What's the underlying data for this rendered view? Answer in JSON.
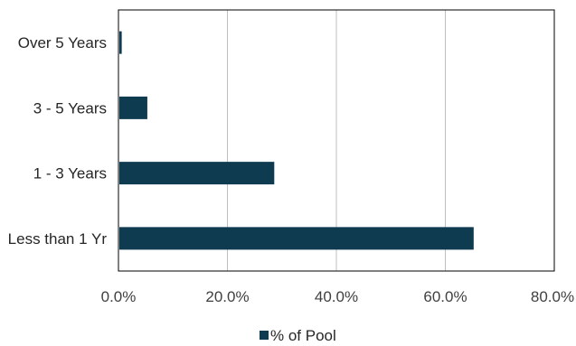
{
  "chart_data": {
    "type": "bar",
    "orientation": "horizontal",
    "categories": [
      "Over 5 Years",
      "3 - 5 Years",
      "1 - 3 Years",
      "Less than 1 Yr"
    ],
    "series": [
      {
        "name": "% of Pool",
        "values": [
          0.6,
          5.3,
          28.6,
          65.2
        ],
        "color": "#0f3b50"
      }
    ],
    "xlim": [
      0,
      80
    ],
    "xticks": [
      0,
      20,
      40,
      60,
      80
    ],
    "xtick_labels": [
      "0.0%",
      "20.0%",
      "40.0%",
      "60.0%",
      "80.0%"
    ],
    "grid": "vertical",
    "legend_position": "bottom",
    "title": "",
    "xlabel": "",
    "ylabel": ""
  }
}
